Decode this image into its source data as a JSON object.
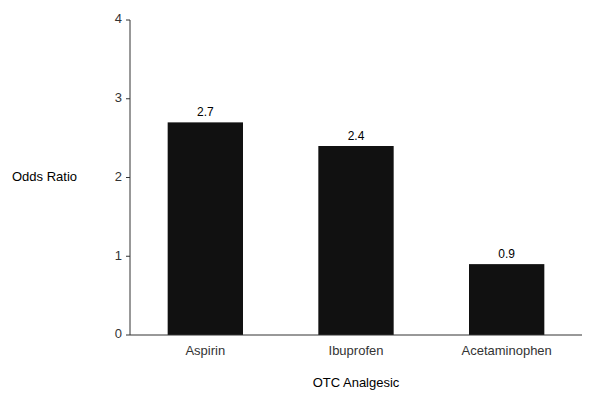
{
  "chart_data": {
    "type": "bar",
    "categories": [
      "Aspirin",
      "Ibuprofen",
      "Acetaminophen"
    ],
    "values": [
      2.7,
      2.4,
      0.9
    ],
    "color": "#111111",
    "xlabel": "OTC Analgesic",
    "ylabel": "Odds Ratio",
    "ylim": [
      0,
      4
    ],
    "yticks": [
      0,
      1,
      2,
      3,
      4
    ],
    "grid": false,
    "data_labels": true
  }
}
